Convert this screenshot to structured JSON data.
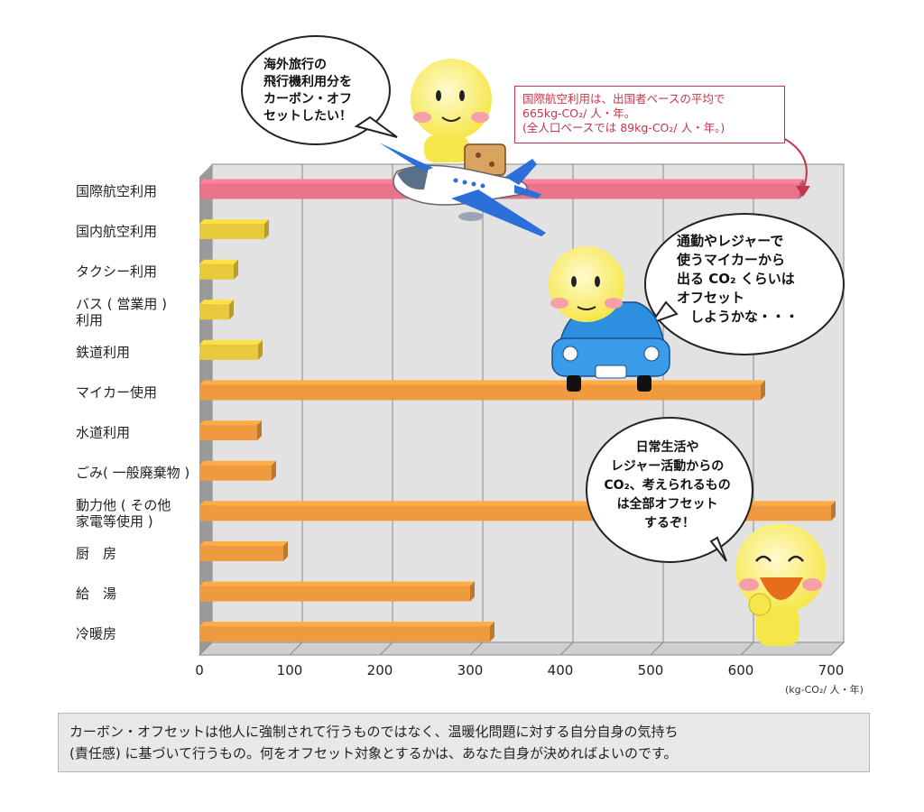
{
  "chart_data": {
    "type": "bar",
    "orientation": "horizontal",
    "categories": [
      [
        "国際航空利用"
      ],
      [
        "国内航空利用"
      ],
      [
        "タクシー利用"
      ],
      [
        "バス ( 営業用 )",
        "利用"
      ],
      [
        "鉄道利用"
      ],
      [
        "マイカー使用"
      ],
      [
        "水道利用"
      ],
      [
        "ごみ( 一般廃棄物 )"
      ],
      [
        "動力他 ( その他",
        "家電等使用 )"
      ],
      [
        "厨　房"
      ],
      [
        "給　湯"
      ],
      [
        "冷暖房"
      ]
    ],
    "values": [
      665,
      72,
      38,
      33,
      65,
      622,
      64,
      80,
      700,
      93,
      300,
      322
    ],
    "bar_colors": [
      "#e8738a",
      "#e8c93c",
      "#e8c93c",
      "#e8c93c",
      "#e8c93c",
      "#ef9a3e",
      "#ef9a3e",
      "#ef9a3e",
      "#ef9a3e",
      "#ef9a3e",
      "#ef9a3e",
      "#ef9a3e"
    ],
    "xlim": [
      0,
      700
    ],
    "xticks": [
      "0",
      "100",
      "200",
      "300",
      "400",
      "500",
      "600",
      "700"
    ],
    "unit_label": "(kg-CO₂/ 人・年)",
    "grid": true
  },
  "note": {
    "lines": [
      "国際航空利用は、出国者ベースの平均で",
      "665kg-CO₂/ 人・年。",
      "(全人口ベースでは 89kg-CO₂/ 人・年。)"
    ]
  },
  "bubbles": {
    "airplane": [
      "海外旅行の",
      "飛行機利用分を",
      "カーボン・オフ",
      "セットしたい！"
    ],
    "car": [
      "通勤やレジャーで",
      "使うマイカーから",
      "出る CO₂ くらいは",
      "オフセット",
      "　しようかな・・・"
    ],
    "daily": [
      "日常生活や",
      "レジャー活動からの",
      "CO₂、考えられるもの",
      "は全部オフセット",
      "するぞ！"
    ]
  },
  "footer": {
    "lines": [
      "カーボン・オフセットは他人に強制されて行うものではなく、温暖化問題に対する自分自身の気持ち",
      "(責任感) に基づいて行うもの。何をオフセット対象とするかは、あなた自身が決めればよいのです。"
    ]
  },
  "icons": [
    "airplane-icon",
    "car-icon",
    "smiley-character-icon"
  ]
}
